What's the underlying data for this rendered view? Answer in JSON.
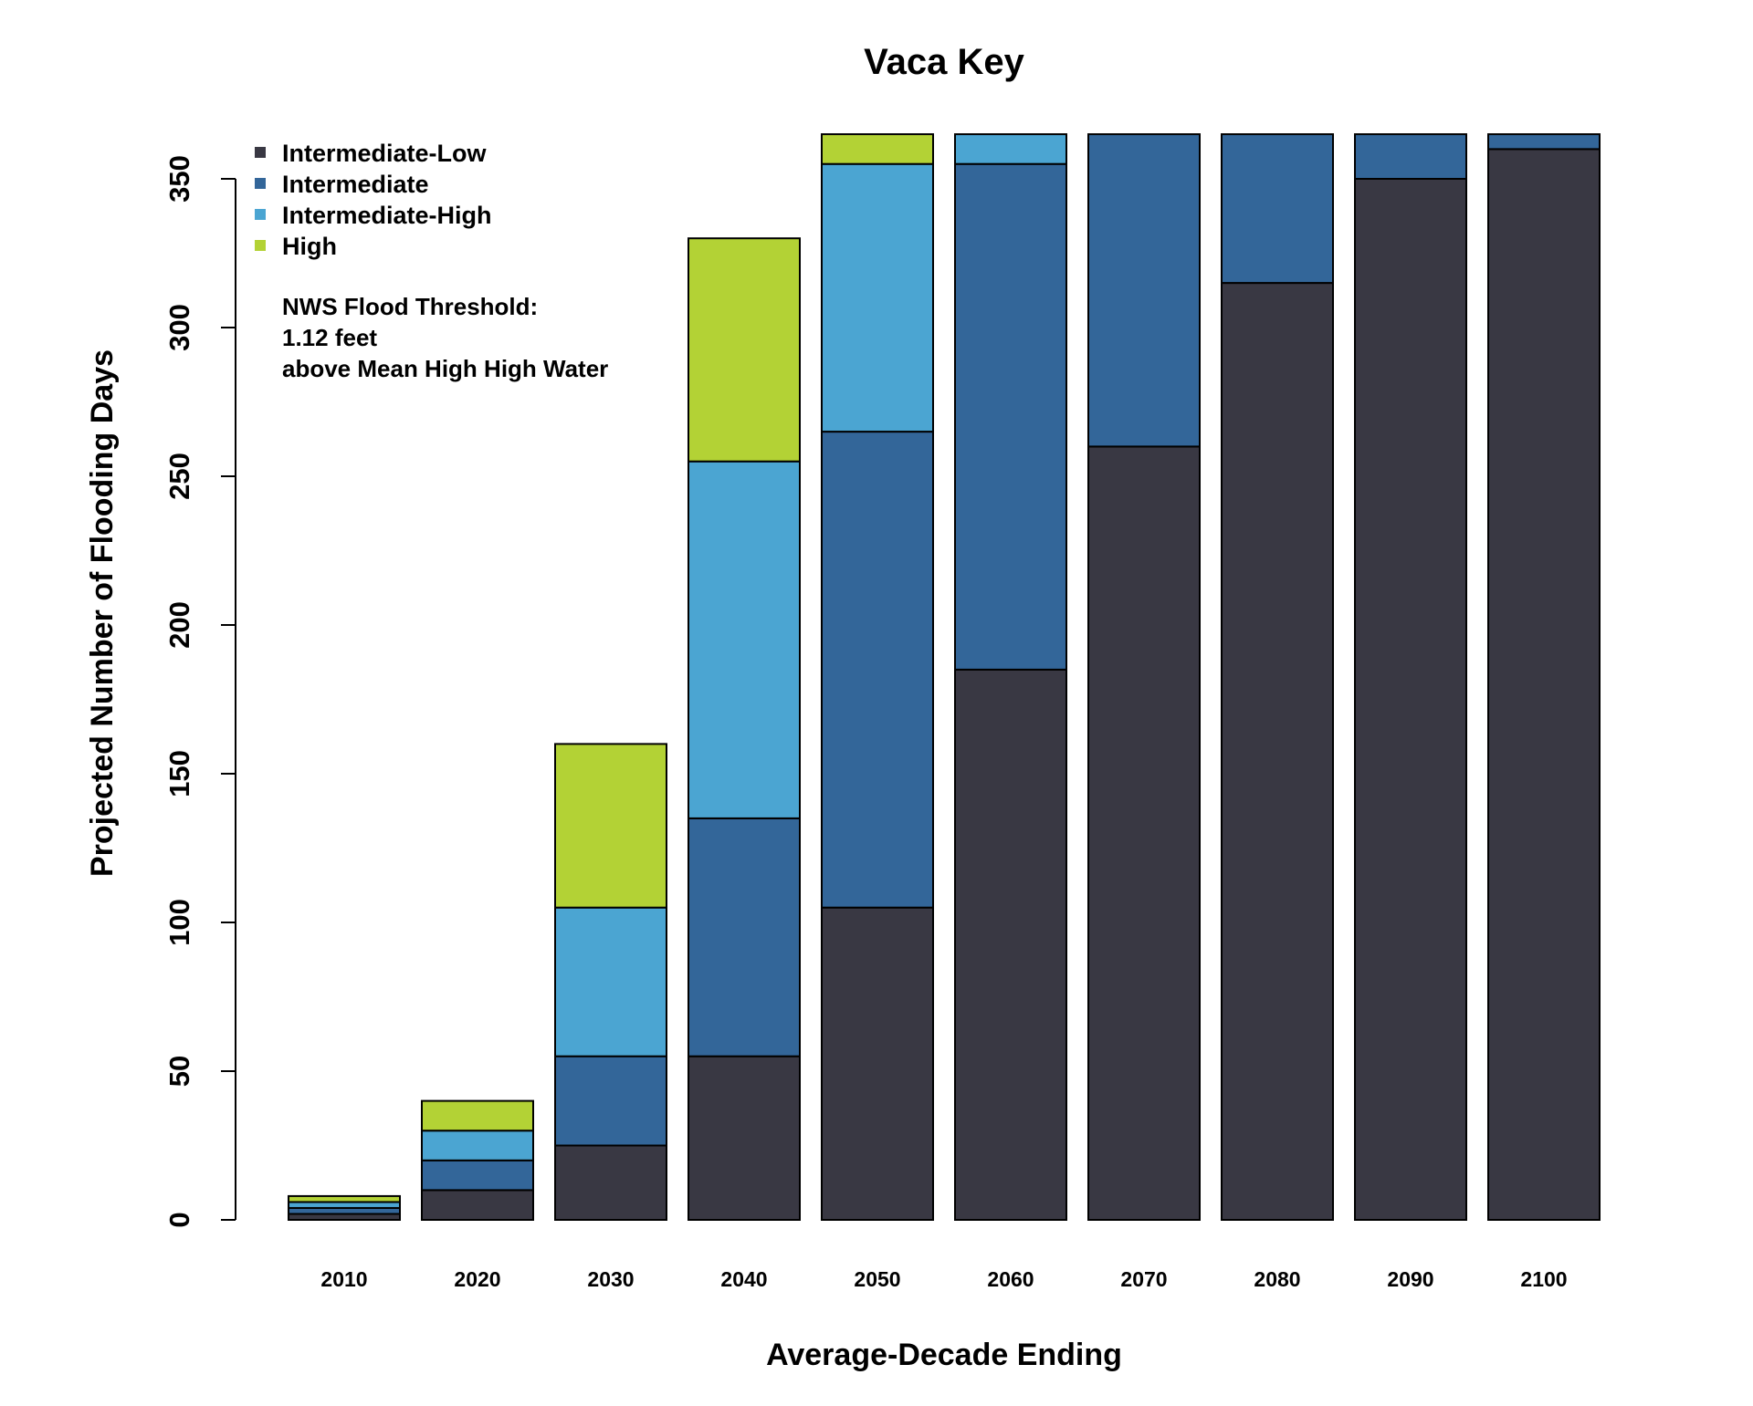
{
  "chart_data": {
    "type": "bar",
    "stacked": true,
    "title": "Vaca Key",
    "xlabel": "Average-Decade Ending",
    "ylabel": "Projected Number of Flooding Days",
    "ylim": [
      0,
      365
    ],
    "yticks": [
      0,
      50,
      100,
      150,
      200,
      250,
      300,
      350
    ],
    "categories": [
      "2010",
      "2020",
      "2030",
      "2040",
      "2050",
      "2060",
      "2070",
      "2080",
      "2090",
      "2100"
    ],
    "series": [
      {
        "name": "Intermediate-Low",
        "color": "#393843",
        "values": [
          2,
          10,
          25,
          55,
          105,
          185,
          260,
          315,
          350,
          360
        ]
      },
      {
        "name": "Intermediate",
        "color": "#336699",
        "values": [
          2,
          10,
          30,
          80,
          160,
          170,
          105,
          50,
          15,
          5
        ]
      },
      {
        "name": "Intermediate-High",
        "color": "#4ba5d2",
        "values": [
          2,
          10,
          50,
          120,
          90,
          10,
          0,
          0,
          0,
          0
        ]
      },
      {
        "name": "High",
        "color": "#b3d235",
        "values": [
          2,
          10,
          55,
          75,
          10,
          0,
          0,
          0,
          0,
          0
        ]
      }
    ],
    "legend_position": "top-left",
    "annotation": [
      "NWS Flood Threshold:",
      "1.12 feet",
      "above Mean High High Water"
    ],
    "grid": false
  }
}
